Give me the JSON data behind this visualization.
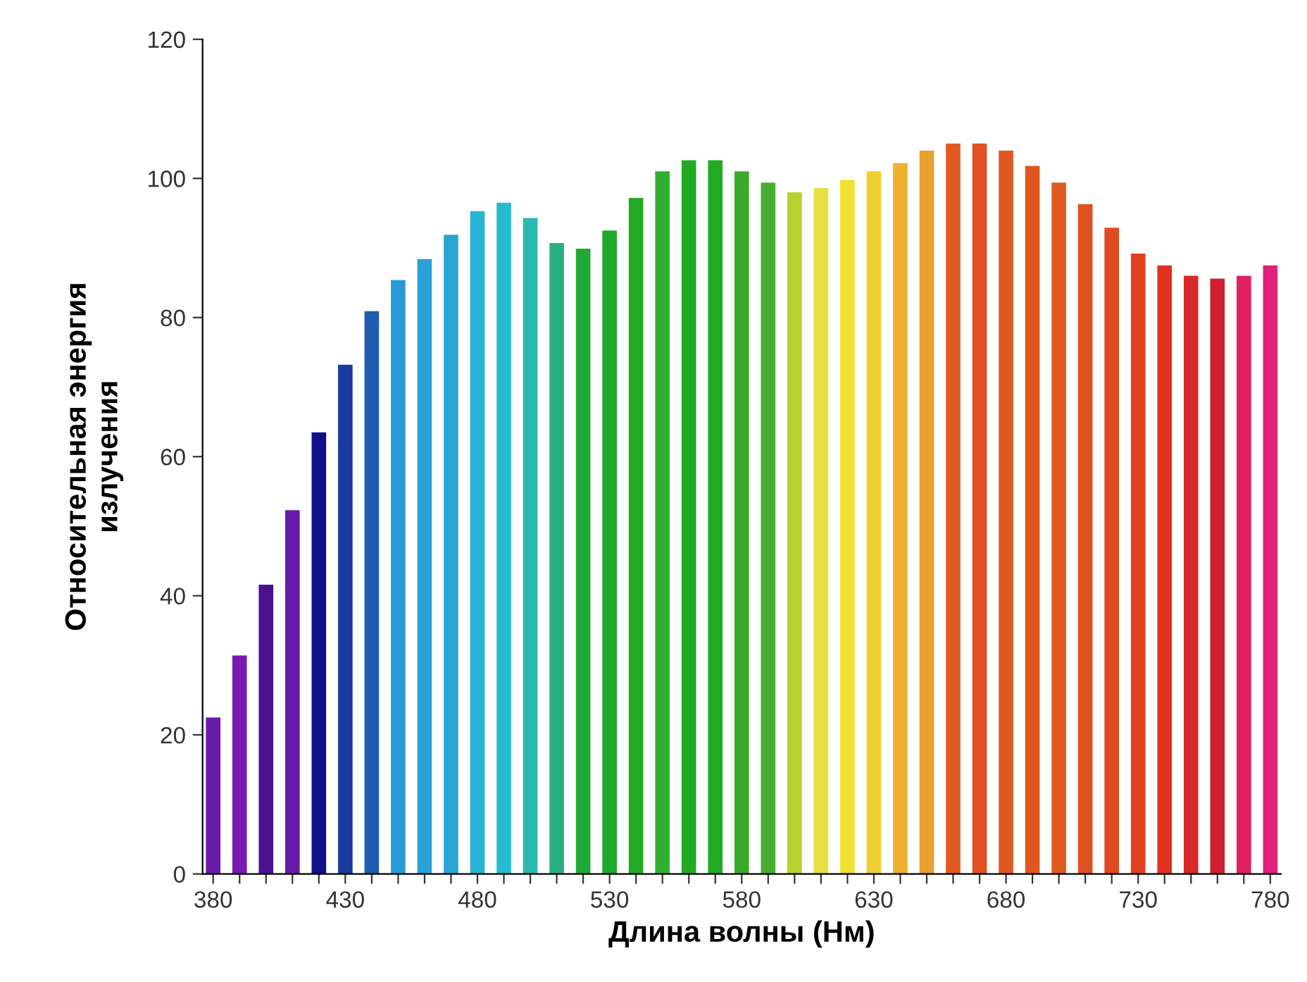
{
  "chart_data": {
    "type": "bar",
    "xlabel": "Длина волны (Нм)",
    "ylabel": "Относительная энергия\nизлучения",
    "x": [
      380,
      390,
      400,
      410,
      420,
      430,
      440,
      450,
      460,
      470,
      480,
      490,
      500,
      510,
      520,
      530,
      540,
      550,
      560,
      570,
      580,
      590,
      600,
      610,
      620,
      630,
      640,
      650,
      660,
      670,
      680,
      690,
      700,
      710,
      720,
      730,
      740,
      750,
      760,
      770,
      780
    ],
    "values": [
      22.5,
      31.4,
      41.6,
      52.3,
      63.5,
      73.2,
      80.9,
      85.4,
      88.4,
      91.9,
      95.3,
      96.5,
      94.3,
      90.7,
      89.9,
      92.5,
      97.2,
      101,
      102.6,
      102.6,
      101,
      99.4,
      98,
      98.6,
      99.8,
      101,
      102.2,
      104,
      105,
      105,
      104,
      101.8,
      99.4,
      96.3,
      92.9,
      89.2,
      87.5,
      86,
      85.6,
      86,
      87.5
    ],
    "colors": [
      "#6a1aa8",
      "#7a1ab0",
      "#4a1090",
      "#6a1aa8",
      "#10108a",
      "#1a3aa0",
      "#1e5cb0",
      "#2a9ad6",
      "#2aa0d8",
      "#2aa6d4",
      "#28b4d4",
      "#26bcd0",
      "#2ab8b0",
      "#28b080",
      "#20a838",
      "#20a828",
      "#22aa22",
      "#30b030",
      "#22aa22",
      "#22aa22",
      "#3aaa2a",
      "#48ae30",
      "#b8d030",
      "#e8e040",
      "#f0e030",
      "#f0d030",
      "#f0b030",
      "#e8a030",
      "#e05a20",
      "#e05020",
      "#e05820",
      "#e05820",
      "#e05a20",
      "#e05020",
      "#e04a20",
      "#e04020",
      "#e03020",
      "#d82828",
      "#d02030",
      "#e02060",
      "#e0207a"
    ],
    "xlim": [
      376,
      784
    ],
    "xticks": [
      380,
      {
        "value": 390,
        "label": null
      },
      {
        "value": 400,
        "label": null
      },
      {
        "value": 410,
        "label": null
      },
      {
        "value": 420,
        "label": null
      },
      430,
      {
        "value": 440,
        "label": null
      },
      {
        "value": 450,
        "label": null
      },
      {
        "value": 460,
        "label": null
      },
      {
        "value": 470,
        "label": null
      },
      480,
      {
        "value": 490,
        "label": null
      },
      {
        "value": 500,
        "label": null
      },
      {
        "value": 510,
        "label": null
      },
      {
        "value": 520,
        "label": null
      },
      530,
      {
        "value": 540,
        "label": null
      },
      {
        "value": 550,
        "label": null
      },
      {
        "value": 560,
        "label": null
      },
      {
        "value": 570,
        "label": null
      },
      580,
      {
        "value": 590,
        "label": null
      },
      {
        "value": 600,
        "label": null
      },
      {
        "value": 610,
        "label": null
      },
      {
        "value": 620,
        "label": null
      },
      630,
      {
        "value": 640,
        "label": null
      },
      {
        "value": 650,
        "label": null
      },
      {
        "value": 660,
        "label": null
      },
      {
        "value": 670,
        "label": null
      },
      680,
      {
        "value": 690,
        "label": null
      },
      {
        "value": 700,
        "label": null
      },
      {
        "value": 710,
        "label": null
      },
      {
        "value": 720,
        "label": null
      },
      730,
      {
        "value": 740,
        "label": null
      },
      {
        "value": 750,
        "label": null
      },
      {
        "value": 760,
        "label": null
      },
      {
        "value": 770,
        "label": null
      },
      780
    ],
    "ylim": [
      0,
      120
    ],
    "yticks": [
      0,
      20,
      40,
      60,
      80,
      100,
      120
    ],
    "grid": false,
    "legend": false
  }
}
